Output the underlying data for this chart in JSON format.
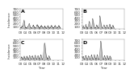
{
  "panels": [
    "A",
    "B",
    "C",
    "D"
  ],
  "year_labels": [
    "03",
    "04",
    "05",
    "06",
    "07",
    "08",
    "09",
    "10",
    "11",
    "12"
  ],
  "ylabel": "Incidence",
  "xlabel": "Year",
  "ylim": [
    0,
    700
  ],
  "yticks": [
    100,
    200,
    300,
    400,
    500,
    600,
    700
  ],
  "background_color": "#ffffff",
  "line_color": "#555555",
  "line_width": 0.35,
  "panel_label_fontsize": 4.5,
  "tick_fontsize": 3.0,
  "series_A": [
    12,
    15,
    18,
    14,
    20,
    25,
    22,
    30,
    28,
    35,
    32,
    40,
    38,
    45,
    42,
    50,
    55,
    60,
    58,
    65,
    70,
    75,
    80,
    85,
    90,
    95,
    100,
    110,
    120,
    135,
    150,
    165,
    180,
    195,
    210,
    225,
    240,
    255,
    270,
    285,
    300,
    285,
    270,
    255,
    240,
    200,
    170,
    140,
    120,
    100,
    85,
    70,
    60,
    50,
    45,
    40,
    38,
    35,
    32,
    30,
    28,
    25,
    22,
    20,
    18,
    16,
    14,
    12,
    10,
    12,
    15,
    18,
    20,
    25,
    30,
    35,
    40,
    45,
    50,
    55,
    60,
    65,
    70,
    75,
    80,
    85,
    90,
    95,
    100,
    110,
    120,
    130,
    140,
    150,
    160,
    170,
    175,
    170,
    165,
    160,
    150,
    140,
    130,
    120,
    110,
    100,
    90,
    80,
    70,
    60,
    50,
    45,
    40,
    35,
    30,
    28,
    25,
    22,
    20,
    18,
    16,
    14,
    12,
    10,
    8,
    12,
    15,
    18,
    22,
    28,
    35,
    42,
    50,
    58,
    65,
    72,
    80,
    88,
    95,
    100,
    105,
    110,
    105,
    100,
    95,
    90,
    85,
    80,
    75,
    70,
    65,
    60,
    55,
    50,
    45,
    40,
    35,
    30,
    25,
    20,
    18,
    15,
    12,
    10,
    8,
    10,
    12,
    15,
    18,
    22,
    28,
    35,
    42,
    50,
    58,
    65,
    72,
    80,
    88,
    95,
    100,
    110,
    115,
    120,
    125,
    130,
    125,
    120,
    115,
    110,
    105,
    100,
    95,
    90,
    85,
    80,
    75,
    70,
    65,
    60,
    55,
    50,
    45,
    40,
    35,
    30,
    25,
    20,
    15,
    12,
    10,
    8,
    10,
    12,
    15,
    18,
    22,
    28,
    35,
    40,
    45,
    50,
    55,
    60,
    65,
    70,
    75,
    80,
    85,
    90,
    95,
    100,
    95,
    90,
    85,
    80,
    75,
    70,
    65,
    60,
    55,
    50,
    45,
    40,
    35,
    30,
    25,
    20,
    15,
    12,
    10,
    8,
    10,
    12,
    15,
    18,
    22,
    28,
    32,
    38,
    42,
    48,
    52,
    58,
    62,
    65,
    70,
    75,
    80,
    75,
    70,
    65,
    60,
    55,
    50,
    45,
    40,
    35,
    30,
    25,
    22,
    20,
    18,
    15,
    12,
    10,
    8,
    10,
    12,
    15,
    18,
    22,
    28,
    35,
    42,
    50,
    58,
    65,
    72,
    80,
    88,
    95,
    100,
    95,
    90,
    85,
    80,
    75,
    70,
    65,
    60,
    55,
    50,
    45,
    40,
    35,
    30,
    25,
    20,
    15,
    12,
    10,
    8,
    10,
    12,
    15,
    18,
    22,
    28,
    32,
    38,
    44,
    50,
    56,
    62,
    68,
    74,
    80,
    86,
    90,
    95,
    98,
    100,
    95,
    90,
    85,
    80,
    75,
    70,
    65,
    60,
    55,
    50,
    45,
    40,
    35,
    30,
    25,
    20,
    15,
    12,
    10,
    8,
    10,
    12,
    15,
    18,
    22,
    28,
    32,
    38,
    44,
    50,
    56,
    62,
    68,
    72,
    78,
    84,
    90,
    95,
    98,
    100,
    95,
    90,
    85,
    80,
    75,
    70,
    65,
    60,
    55,
    50,
    45,
    40,
    35,
    30,
    25,
    20,
    15,
    12,
    10,
    8,
    10,
    12,
    15,
    18,
    22,
    25,
    30,
    35,
    40,
    45,
    50,
    55,
    60,
    65,
    68,
    72,
    78,
    82,
    88,
    92,
    95,
    90,
    85,
    80,
    75,
    70,
    65,
    60,
    55,
    50,
    45,
    40,
    35,
    30,
    25,
    20,
    15,
    12,
    10,
    8
  ],
  "series_B": [
    10,
    12,
    15,
    18,
    22,
    28,
    35,
    45,
    55,
    65,
    75,
    85,
    95,
    105,
    95,
    85,
    75,
    65,
    55,
    45,
    35,
    28,
    22,
    18,
    15,
    12,
    10,
    8,
    10,
    12,
    15,
    20,
    28,
    38,
    50,
    65,
    80,
    95,
    110,
    120,
    130,
    140,
    135,
    125,
    115,
    105,
    95,
    85,
    75,
    65,
    55,
    45,
    35,
    28,
    22,
    18,
    15,
    12,
    10,
    8,
    10,
    12,
    15,
    20,
    28,
    38,
    50,
    65,
    80,
    95,
    110,
    125,
    140,
    155,
    170,
    185,
    200,
    215,
    230,
    245,
    240,
    225,
    210,
    195,
    180,
    165,
    150,
    135,
    120,
    105,
    90,
    75,
    60,
    48,
    38,
    30,
    24,
    18,
    14,
    10,
    8,
    10,
    12,
    15,
    20,
    28,
    38,
    55,
    75,
    100,
    130,
    165,
    200,
    235,
    270,
    310,
    350,
    345,
    335,
    320,
    305,
    290,
    270,
    250,
    230,
    210,
    190,
    170,
    150,
    130,
    115,
    100,
    88,
    76,
    65,
    55,
    48,
    40,
    34,
    28,
    22,
    18,
    15,
    12,
    10,
    8,
    10,
    12,
    15,
    18,
    22,
    28,
    35,
    45,
    55,
    65,
    78,
    92,
    105,
    115,
    120,
    118,
    115,
    108,
    100,
    92,
    85,
    78,
    70,
    62,
    55,
    48,
    42,
    36,
    30,
    24,
    20,
    16,
    12,
    10,
    8,
    10,
    12,
    15,
    20,
    28,
    38,
    55,
    80,
    110,
    145,
    190,
    240,
    305,
    355,
    400,
    440,
    425,
    410,
    390,
    370,
    345,
    320,
    295,
    270,
    248,
    225,
    202,
    180,
    162,
    145,
    128,
    115,
    100,
    88,
    76,
    65,
    55,
    46,
    38,
    32,
    26,
    20,
    16,
    12,
    10,
    8,
    10,
    12,
    15,
    18,
    22,
    28,
    35,
    45,
    55,
    68,
    82,
    96,
    108,
    118,
    124,
    120,
    115,
    108,
    100,
    92,
    85,
    78,
    70,
    62,
    55,
    48,
    42,
    36,
    30,
    24,
    18,
    14,
    10,
    8,
    10,
    12,
    15,
    20,
    28,
    38,
    52,
    68,
    85,
    100,
    112,
    120,
    115,
    108,
    100,
    92,
    85,
    78,
    70,
    62,
    55,
    48,
    42,
    36,
    30,
    24,
    18,
    14,
    10,
    8,
    10,
    12,
    15,
    20,
    28,
    38,
    52,
    68,
    85,
    100,
    115,
    128,
    138,
    145,
    150,
    145,
    138,
    128,
    118,
    108,
    98,
    88,
    78,
    68,
    58,
    50,
    42,
    35,
    28,
    22,
    18,
    14,
    10,
    8,
    10,
    12,
    15,
    18,
    22,
    28,
    35,
    42,
    50,
    58,
    68,
    78,
    88,
    95,
    100,
    98,
    95,
    88,
    80,
    72,
    65,
    58,
    52,
    46,
    40,
    34,
    28,
    22,
    18,
    14,
    10,
    8
  ],
  "series_C": [
    15,
    20,
    25,
    30,
    35,
    42,
    50,
    58,
    65,
    72,
    78,
    84,
    90,
    95,
    90,
    84,
    78,
    72,
    65,
    58,
    50,
    42,
    35,
    30,
    25,
    20,
    16,
    12,
    10,
    15,
    20,
    25,
    32,
    40,
    50,
    62,
    75,
    88,
    100,
    110,
    118,
    122,
    118,
    110,
    100,
    90,
    80,
    70,
    60,
    52,
    44,
    38,
    32,
    26,
    20,
    16,
    12,
    10,
    15,
    20,
    25,
    32,
    40,
    50,
    62,
    75,
    88,
    100,
    112,
    120,
    125,
    128,
    122,
    115,
    108,
    100,
    92,
    84,
    76,
    68,
    60,
    52,
    44,
    38,
    32,
    26,
    20,
    16,
    12,
    10,
    15,
    20,
    28,
    38,
    50,
    65,
    82,
    100,
    115,
    128,
    135,
    140,
    138,
    132,
    125,
    115,
    105,
    95,
    85,
    75,
    65,
    56,
    48,
    40,
    34,
    28,
    22,
    18,
    14,
    10,
    15,
    22,
    30,
    40,
    52,
    68,
    85,
    100,
    112,
    122,
    128,
    132,
    130,
    125,
    118,
    110,
    100,
    90,
    80,
    70,
    60,
    52,
    44,
    38,
    32,
    26,
    20,
    16,
    12,
    10,
    15,
    22,
    30,
    42,
    55,
    70,
    88,
    105,
    120,
    132,
    140,
    145,
    148,
    145,
    138,
    130,
    120,
    110,
    100,
    90,
    80,
    70,
    60,
    52,
    44,
    38,
    32,
    26,
    20,
    16,
    12,
    10,
    15,
    22,
    32,
    44,
    58,
    75,
    92,
    108,
    120,
    130,
    136,
    140,
    138,
    132,
    124,
    115,
    105,
    95,
    85,
    75,
    65,
    56,
    48,
    40,
    34,
    28,
    22,
    18,
    14,
    10,
    15,
    22,
    32,
    45,
    60,
    78,
    98,
    118,
    135,
    150,
    160,
    165,
    168,
    165,
    158,
    150,
    140,
    128,
    116,
    104,
    92,
    80,
    70,
    60,
    52,
    44,
    38,
    32,
    26,
    20,
    16,
    12,
    10,
    15,
    22,
    32,
    45,
    62,
    82,
    105,
    132,
    162,
    195,
    232,
    272,
    315,
    362,
    410,
    450,
    488,
    522,
    550,
    570,
    582,
    585,
    578,
    565,
    545,
    520,
    492,
    460,
    428,
    394,
    360,
    328,
    298,
    270,
    244,
    220,
    198,
    178,
    160,
    143,
    128,
    115,
    102,
    92,
    82,
    72,
    64,
    56,
    48,
    42,
    36,
    30,
    24,
    20,
    16,
    12,
    10,
    15,
    22,
    30,
    40,
    52,
    65,
    80,
    95,
    108,
    118,
    126,
    130,
    128,
    124,
    118,
    110,
    102,
    94,
    86,
    78,
    70,
    62,
    55,
    48,
    42,
    36,
    30,
    24,
    20,
    16,
    12
  ],
  "series_D": [
    12,
    16,
    22,
    28,
    36,
    46,
    58,
    70,
    82,
    92,
    100,
    105,
    108,
    105,
    100,
    94,
    86,
    78,
    70,
    62,
    54,
    46,
    38,
    32,
    26,
    20,
    16,
    12,
    10,
    14,
    20,
    28,
    38,
    50,
    65,
    82,
    100,
    116,
    128,
    136,
    140,
    142,
    138,
    132,
    124,
    114,
    104,
    94,
    84,
    74,
    64,
    55,
    46,
    38,
    32,
    26,
    20,
    16,
    12,
    10,
    14,
    20,
    28,
    38,
    50,
    65,
    80,
    95,
    108,
    118,
    126,
    130,
    128,
    124,
    118,
    110,
    102,
    94,
    86,
    78,
    70,
    62,
    54,
    46,
    38,
    32,
    26,
    20,
    16,
    12,
    10,
    14,
    20,
    28,
    38,
    52,
    68,
    88,
    108,
    126,
    140,
    152,
    158,
    162,
    158,
    152,
    142,
    132,
    120,
    108,
    96,
    85,
    74,
    64,
    55,
    46,
    38,
    32,
    26,
    20,
    16,
    12,
    10,
    14,
    20,
    30,
    42,
    58,
    76,
    96,
    116,
    134,
    148,
    158,
    166,
    168,
    165,
    158,
    148,
    136,
    122,
    108,
    96,
    84,
    72,
    62,
    53,
    44,
    36,
    30,
    24,
    20,
    16,
    12,
    10,
    14,
    20,
    28,
    40,
    55,
    72,
    92,
    112,
    130,
    145,
    156,
    162,
    165,
    162,
    155,
    146,
    134,
    122,
    110,
    98,
    86,
    75,
    64,
    55,
    46,
    38,
    32,
    26,
    20,
    16,
    12,
    10,
    14,
    22,
    32,
    46,
    64,
    86,
    112,
    142,
    178,
    220,
    268,
    322,
    382,
    448,
    500,
    550,
    595,
    628,
    648,
    655,
    648,
    628,
    598,
    560,
    518,
    474,
    428,
    382,
    338,
    298,
    260,
    226,
    196,
    168,
    143,
    122,
    103,
    88,
    74,
    62,
    52,
    43,
    36,
    30,
    24,
    20,
    16,
    12,
    10,
    14,
    20,
    28,
    38,
    50,
    65,
    82,
    100,
    116,
    128,
    136,
    140,
    138,
    132,
    124,
    114,
    104,
    94,
    84,
    74,
    64,
    55,
    46,
    38,
    32,
    26,
    20,
    16,
    12,
    10,
    14,
    20,
    28,
    38,
    50,
    65,
    80,
    95,
    108,
    118,
    126,
    130,
    128,
    122,
    114,
    106,
    96,
    86,
    76,
    66,
    56,
    48,
    40,
    33,
    28,
    22,
    18,
    14,
    10,
    14,
    20,
    28,
    38,
    50,
    64,
    80,
    96,
    110,
    122,
    130,
    136,
    138,
    135,
    130,
    122,
    114,
    104,
    94,
    84,
    74,
    65,
    56,
    48,
    40,
    33,
    28,
    22,
    18,
    14,
    10
  ]
}
